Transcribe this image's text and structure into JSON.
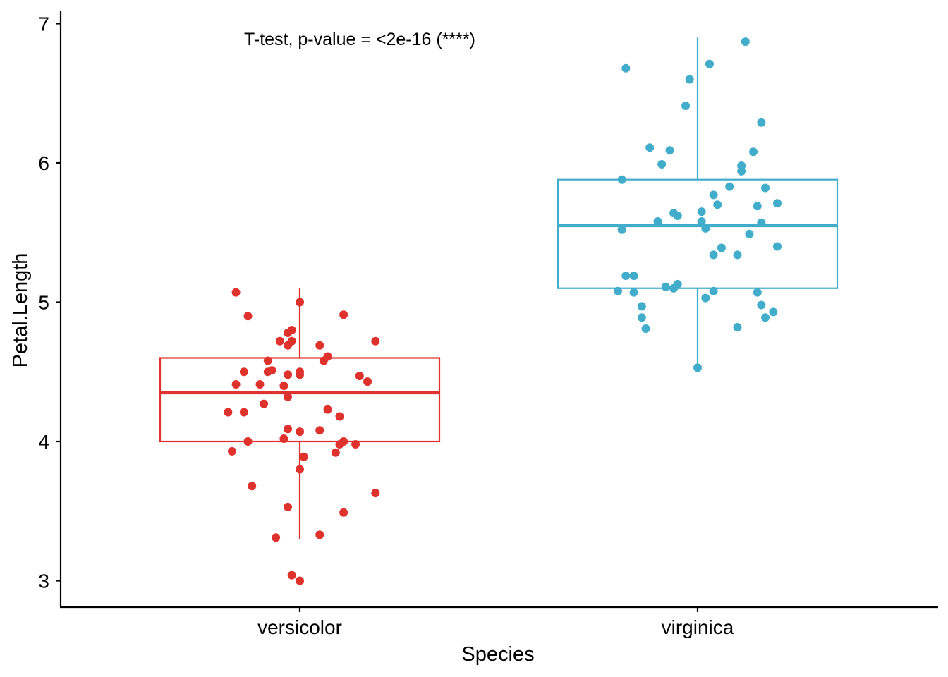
{
  "chart_data": {
    "type": "boxplot",
    "annotation": "T-test, p-value = <2e-16 (****)",
    "xlabel": "Species",
    "ylabel": "Petal.Length",
    "categories": [
      "versicolor",
      "virginica"
    ],
    "yticks": [
      "3",
      "4",
      "5",
      "6",
      "7"
    ],
    "ylim": [
      2.93,
      7.07
    ],
    "grid": false,
    "legend": "none",
    "colors": {
      "versicolor": "#E0322D",
      "virginica": "#42ADCB"
    },
    "series": [
      {
        "category": "versicolor",
        "box": {
          "min": 3.3,
          "q1": 4.0,
          "median": 4.35,
          "q3": 4.6,
          "max": 5.1
        },
        "points": [
          {
            "dx": -0.16,
            "y": 5.07
          },
          {
            "dx": 0.0,
            "y": 5.0
          },
          {
            "dx": -0.13,
            "y": 4.9
          },
          {
            "dx": 0.11,
            "y": 4.91
          },
          {
            "dx": -0.02,
            "y": 4.8
          },
          {
            "dx": -0.03,
            "y": 4.78
          },
          {
            "dx": -0.05,
            "y": 4.72
          },
          {
            "dx": -0.02,
            "y": 4.72
          },
          {
            "dx": -0.03,
            "y": 4.69
          },
          {
            "dx": 0.05,
            "y": 4.69
          },
          {
            "dx": 0.19,
            "y": 4.72
          },
          {
            "dx": 0.07,
            "y": 4.61
          },
          {
            "dx": 0.06,
            "y": 4.58
          },
          {
            "dx": -0.08,
            "y": 4.58
          },
          {
            "dx": -0.07,
            "y": 4.51
          },
          {
            "dx": -0.08,
            "y": 4.5
          },
          {
            "dx": -0.14,
            "y": 4.5
          },
          {
            "dx": -0.03,
            "y": 4.48
          },
          {
            "dx": 0.0,
            "y": 4.5
          },
          {
            "dx": 0.0,
            "y": 4.48
          },
          {
            "dx": 0.15,
            "y": 4.47
          },
          {
            "dx": 0.17,
            "y": 4.43
          },
          {
            "dx": -0.16,
            "y": 4.41
          },
          {
            "dx": -0.1,
            "y": 4.41
          },
          {
            "dx": -0.04,
            "y": 4.4
          },
          {
            "dx": -0.03,
            "y": 4.32
          },
          {
            "dx": -0.09,
            "y": 4.27
          },
          {
            "dx": 0.07,
            "y": 4.23
          },
          {
            "dx": -0.18,
            "y": 4.21
          },
          {
            "dx": -0.14,
            "y": 4.21
          },
          {
            "dx": 0.1,
            "y": 4.18
          },
          {
            "dx": -0.03,
            "y": 4.09
          },
          {
            "dx": 0.0,
            "y": 4.07
          },
          {
            "dx": 0.05,
            "y": 4.08
          },
          {
            "dx": -0.04,
            "y": 4.02
          },
          {
            "dx": -0.13,
            "y": 4.0
          },
          {
            "dx": 0.11,
            "y": 4.0
          },
          {
            "dx": 0.1,
            "y": 3.98
          },
          {
            "dx": 0.14,
            "y": 3.98
          },
          {
            "dx": -0.17,
            "y": 3.93
          },
          {
            "dx": 0.09,
            "y": 3.92
          },
          {
            "dx": 0.01,
            "y": 3.89
          },
          {
            "dx": 0.0,
            "y": 3.8
          },
          {
            "dx": -0.12,
            "y": 3.68
          },
          {
            "dx": 0.19,
            "y": 3.63
          },
          {
            "dx": -0.03,
            "y": 3.53
          },
          {
            "dx": 0.11,
            "y": 3.49
          },
          {
            "dx": 0.05,
            "y": 3.33
          },
          {
            "dx": -0.06,
            "y": 3.31
          },
          {
            "dx": -0.02,
            "y": 3.04
          },
          {
            "dx": 0.0,
            "y": 3.0
          }
        ]
      },
      {
        "category": "virginica",
        "box": {
          "min": 4.53,
          "q1": 5.1,
          "median": 5.55,
          "q3": 5.88,
          "max": 6.9
        },
        "points": [
          {
            "dx": 0.12,
            "y": 6.87
          },
          {
            "dx": 0.03,
            "y": 6.71
          },
          {
            "dx": -0.18,
            "y": 6.68
          },
          {
            "dx": -0.02,
            "y": 6.6
          },
          {
            "dx": -0.03,
            "y": 6.41
          },
          {
            "dx": 0.16,
            "y": 6.29
          },
          {
            "dx": -0.12,
            "y": 6.11
          },
          {
            "dx": -0.07,
            "y": 6.09
          },
          {
            "dx": 0.14,
            "y": 6.08
          },
          {
            "dx": -0.09,
            "y": 5.99
          },
          {
            "dx": 0.11,
            "y": 5.98
          },
          {
            "dx": 0.11,
            "y": 5.94
          },
          {
            "dx": -0.19,
            "y": 5.88
          },
          {
            "dx": 0.08,
            "y": 5.83
          },
          {
            "dx": 0.17,
            "y": 5.82
          },
          {
            "dx": 0.04,
            "y": 5.77
          },
          {
            "dx": 0.2,
            "y": 5.71
          },
          {
            "dx": 0.05,
            "y": 5.7
          },
          {
            "dx": 0.15,
            "y": 5.69
          },
          {
            "dx": 0.01,
            "y": 5.65
          },
          {
            "dx": -0.06,
            "y": 5.64
          },
          {
            "dx": -0.05,
            "y": 5.62
          },
          {
            "dx": -0.1,
            "y": 5.58
          },
          {
            "dx": 0.01,
            "y": 5.58
          },
          {
            "dx": 0.16,
            "y": 5.57
          },
          {
            "dx": 0.02,
            "y": 5.53
          },
          {
            "dx": -0.19,
            "y": 5.52
          },
          {
            "dx": 0.13,
            "y": 5.49
          },
          {
            "dx": 0.2,
            "y": 5.4
          },
          {
            "dx": 0.06,
            "y": 5.39
          },
          {
            "dx": 0.04,
            "y": 5.34
          },
          {
            "dx": 0.1,
            "y": 5.34
          },
          {
            "dx": -0.18,
            "y": 5.19
          },
          {
            "dx": -0.16,
            "y": 5.19
          },
          {
            "dx": -0.05,
            "y": 5.13
          },
          {
            "dx": -0.08,
            "y": 5.11
          },
          {
            "dx": -0.06,
            "y": 5.1
          },
          {
            "dx": -0.2,
            "y": 5.08
          },
          {
            "dx": -0.16,
            "y": 5.07
          },
          {
            "dx": 0.04,
            "y": 5.08
          },
          {
            "dx": 0.15,
            "y": 5.07
          },
          {
            "dx": 0.02,
            "y": 5.03
          },
          {
            "dx": -0.14,
            "y": 4.97
          },
          {
            "dx": 0.16,
            "y": 4.98
          },
          {
            "dx": 0.19,
            "y": 4.93
          },
          {
            "dx": -0.14,
            "y": 4.89
          },
          {
            "dx": 0.17,
            "y": 4.89
          },
          {
            "dx": 0.1,
            "y": 4.82
          },
          {
            "dx": -0.13,
            "y": 4.81
          },
          {
            "dx": 0.0,
            "y": 4.53
          }
        ]
      }
    ]
  }
}
